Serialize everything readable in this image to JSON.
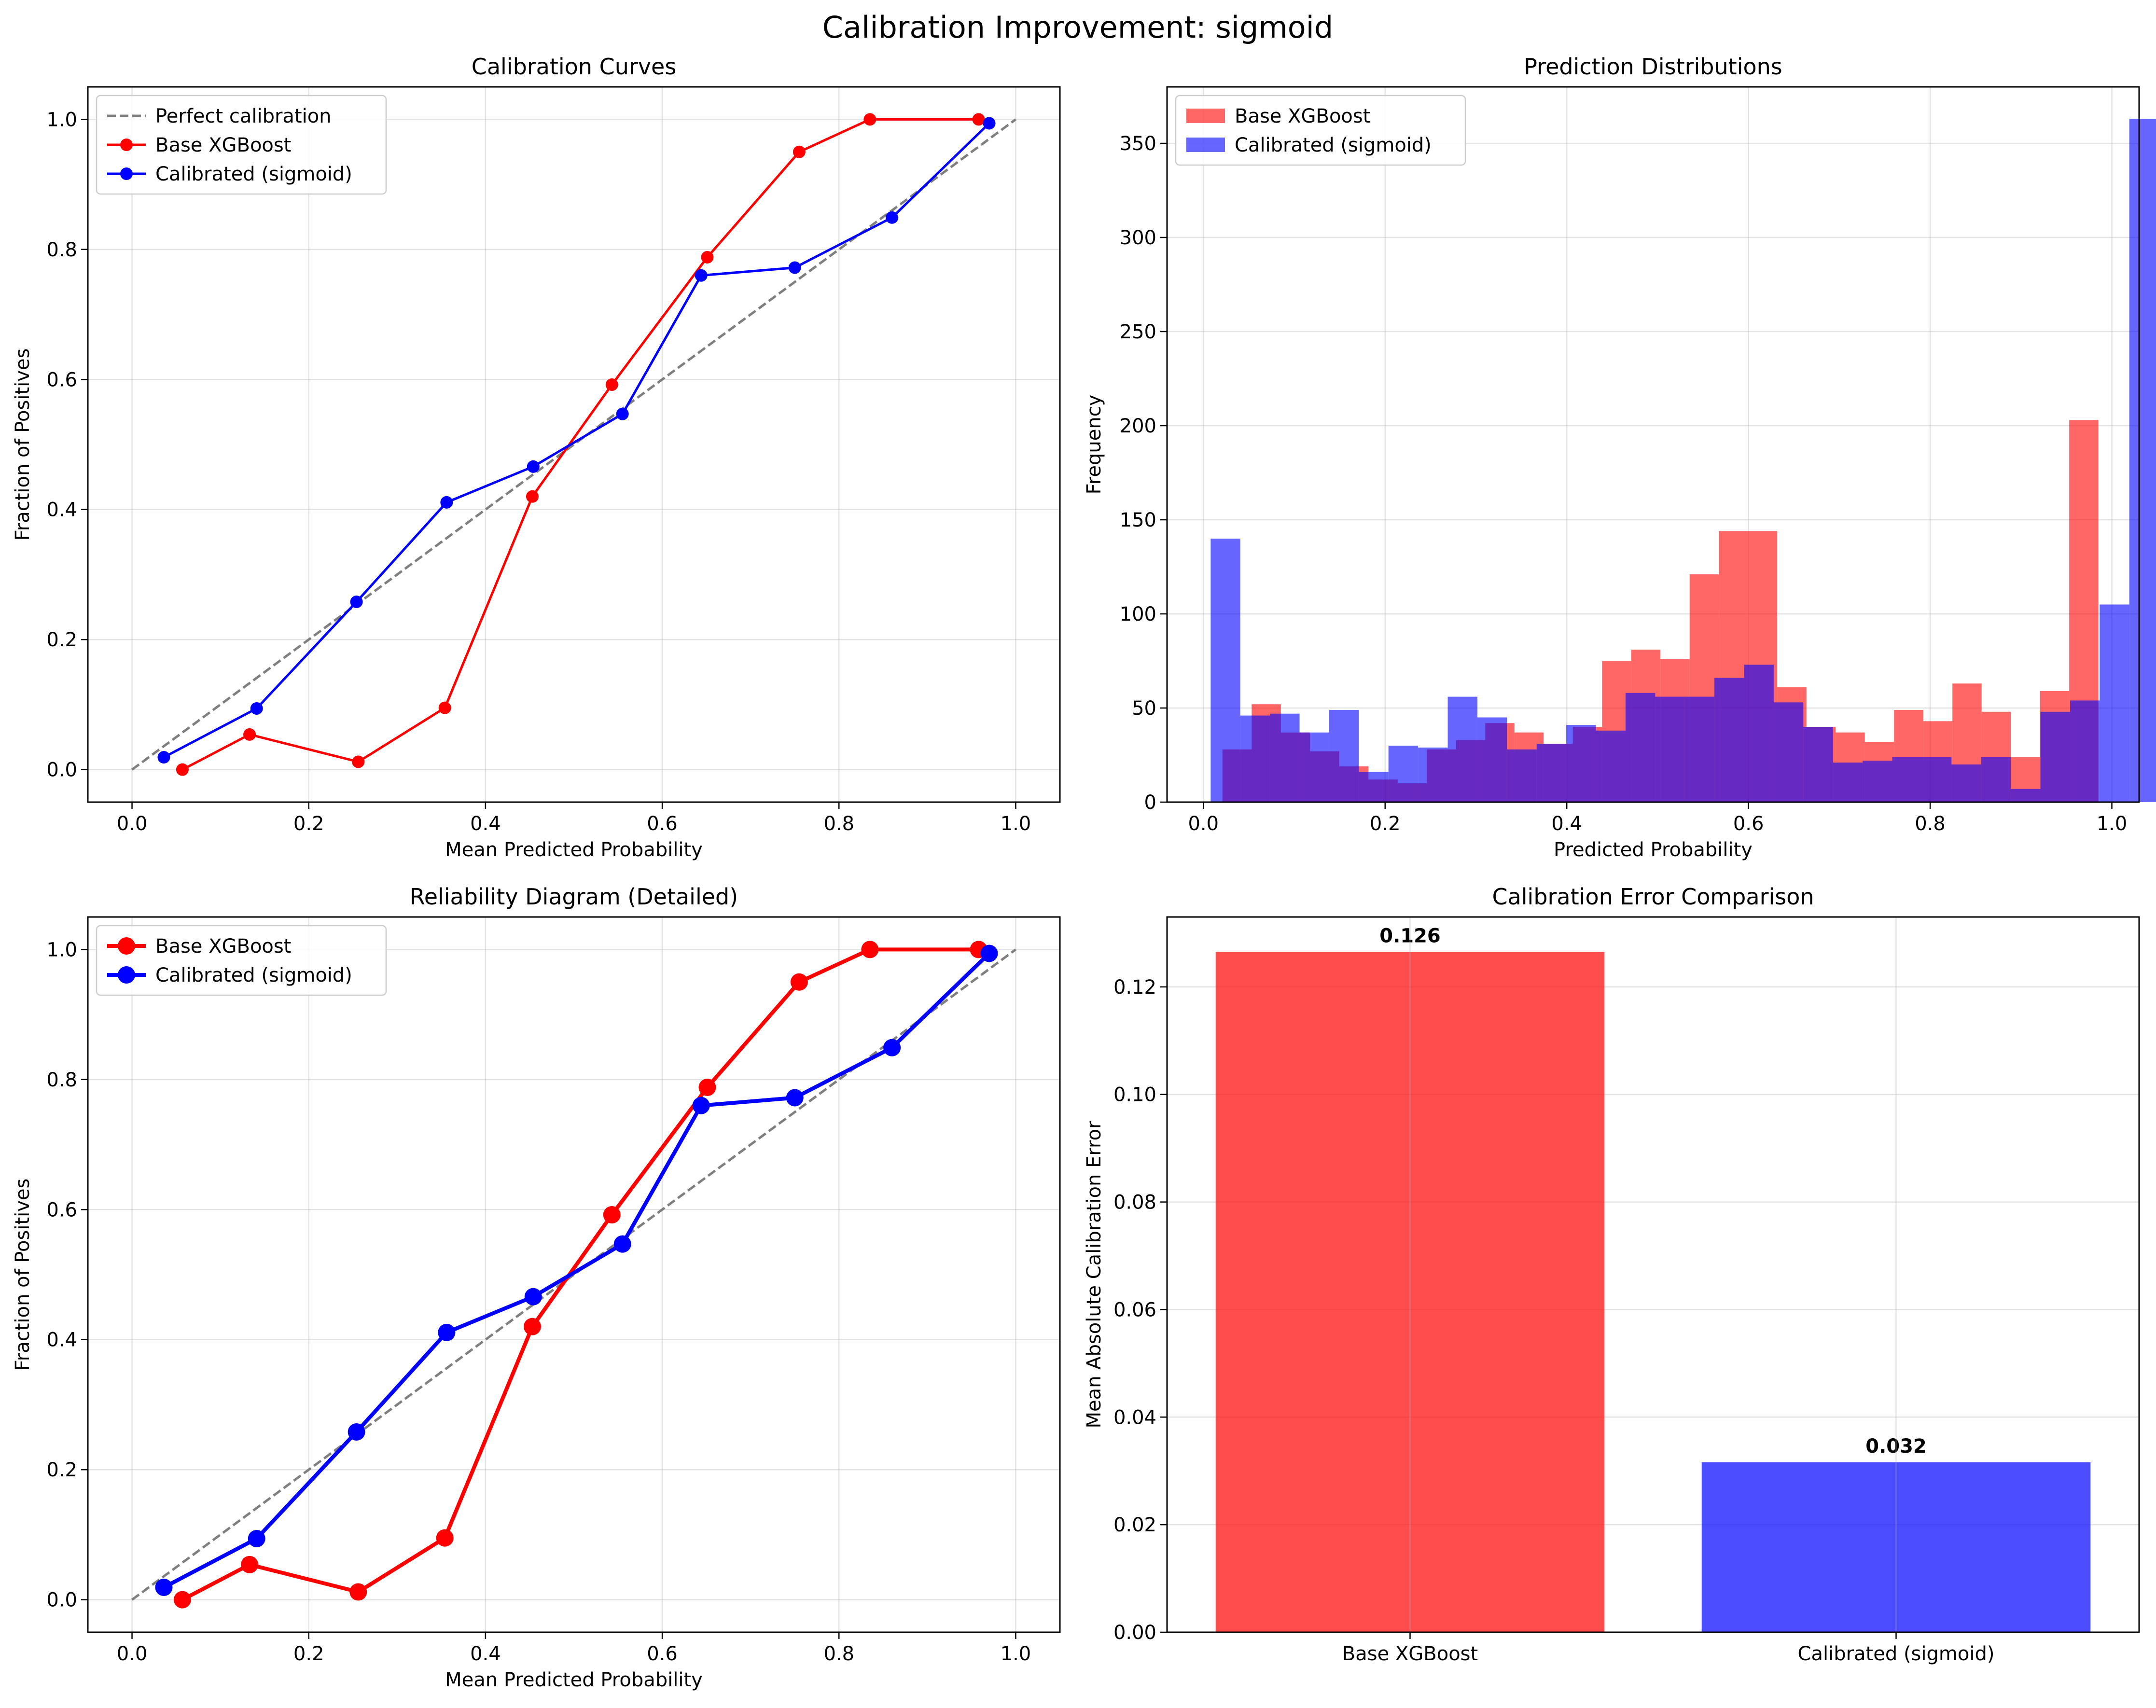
{
  "figure_title": "Calibration Improvement: sigmoid",
  "colors": {
    "base": "#ff0000",
    "calibrated": "#0000ff",
    "perfect": "#7f7f7f",
    "purple_overlap": "#8c30c0"
  },
  "chart_data": [
    {
      "id": "calibration-curves",
      "type": "line",
      "title": "Calibration Curves",
      "xlabel": "Mean Predicted Probability",
      "ylabel": "Fraction of Positives",
      "xlim": [
        -0.05,
        1.05
      ],
      "ylim": [
        -0.05,
        1.05
      ],
      "xticks": [
        0.0,
        0.2,
        0.4,
        0.6,
        0.8,
        1.0
      ],
      "yticks": [
        0.0,
        0.2,
        0.4,
        0.6,
        0.8,
        1.0
      ],
      "grid": true,
      "legend_position": "upper-left",
      "series": [
        {
          "name": "Perfect calibration",
          "style": "dashed",
          "x": [
            0.0,
            1.0
          ],
          "y": [
            0.0,
            1.0
          ]
        },
        {
          "name": "Base XGBoost",
          "style": "marker",
          "x": [
            0.057,
            0.133,
            0.256,
            0.354,
            0.453,
            0.543,
            0.651,
            0.755,
            0.835,
            0.958
          ],
          "y": [
            0.0,
            0.054,
            0.012,
            0.095,
            0.42,
            0.592,
            0.788,
            0.95,
            1.0,
            1.0
          ]
        },
        {
          "name": "Calibrated (sigmoid)",
          "style": "marker",
          "x": [
            0.036,
            0.141,
            0.254,
            0.356,
            0.454,
            0.555,
            0.644,
            0.75,
            0.86,
            0.97
          ],
          "y": [
            0.019,
            0.094,
            0.258,
            0.411,
            0.466,
            0.547,
            0.76,
            0.772,
            0.849,
            0.994
          ]
        }
      ]
    },
    {
      "id": "prediction-distributions",
      "type": "histogram",
      "title": "Prediction Distributions",
      "xlabel": "Predicted Probability",
      "ylabel": "Frequency",
      "xlim": [
        -0.04,
        1.03
      ],
      "ylim": [
        0,
        380
      ],
      "xticks": [
        0.0,
        0.2,
        0.4,
        0.6,
        0.8,
        1.0
      ],
      "yticks": [
        0,
        50,
        100,
        150,
        200,
        250,
        300,
        350
      ],
      "grid": true,
      "legend_position": "upper-left",
      "series": [
        {
          "name": "Base XGBoost",
          "bin_start": 0.021,
          "bin_width": 0.03214,
          "values": [
            28,
            52,
            37,
            27,
            19,
            12,
            10,
            28,
            33,
            42,
            37,
            31,
            40,
            75,
            81,
            76,
            121,
            144,
            144,
            61,
            40,
            37,
            32,
            49,
            43,
            63,
            48,
            24,
            59,
            203
          ]
        },
        {
          "name": "Calibrated (sigmoid)",
          "bin_start": 0.008,
          "bin_width": 0.03262,
          "values": [
            140,
            46,
            47,
            37,
            49,
            16,
            30,
            29,
            56,
            45,
            28,
            31,
            41,
            38,
            58,
            56,
            56,
            66,
            73,
            53,
            40,
            21,
            22,
            24,
            24,
            20,
            24,
            7,
            48,
            54,
            105,
            363
          ]
        }
      ]
    },
    {
      "id": "reliability-diagram",
      "type": "line",
      "title": "Reliability Diagram (Detailed)",
      "xlabel": "Mean Predicted Probability",
      "ylabel": "Fraction of Positives",
      "xlim": [
        -0.05,
        1.05
      ],
      "ylim": [
        -0.05,
        1.05
      ],
      "xticks": [
        0.0,
        0.2,
        0.4,
        0.6,
        0.8,
        1.0
      ],
      "yticks": [
        0.0,
        0.2,
        0.4,
        0.6,
        0.8,
        1.0
      ],
      "grid": true,
      "legend_position": "upper-left",
      "series": [
        {
          "name": "Perfect",
          "style": "dashed",
          "in_legend": false,
          "x": [
            0.0,
            1.0
          ],
          "y": [
            0.0,
            1.0
          ]
        },
        {
          "name": "Base XGBoost",
          "style": "marker-large",
          "x": [
            0.057,
            0.133,
            0.256,
            0.354,
            0.453,
            0.543,
            0.651,
            0.755,
            0.835,
            0.958
          ],
          "y": [
            0.0,
            0.054,
            0.012,
            0.095,
            0.42,
            0.592,
            0.788,
            0.95,
            1.0,
            1.0
          ]
        },
        {
          "name": "Calibrated (sigmoid)",
          "style": "marker-large",
          "x": [
            0.036,
            0.141,
            0.254,
            0.356,
            0.454,
            0.555,
            0.644,
            0.75,
            0.86,
            0.97
          ],
          "y": [
            0.019,
            0.094,
            0.258,
            0.411,
            0.466,
            0.547,
            0.76,
            0.772,
            0.849,
            0.994
          ]
        }
      ]
    },
    {
      "id": "calibration-error-comparison",
      "type": "bar",
      "title": "Calibration Error Comparison",
      "xlabel": "",
      "ylabel": "Mean Absolute Calibration Error",
      "categories": [
        "Base XGBoost",
        "Calibrated (sigmoid)"
      ],
      "values": [
        0.1265,
        0.0316
      ],
      "value_labels": [
        "0.126",
        "0.032"
      ],
      "ylim": [
        0,
        0.133
      ],
      "yticks": [
        0.0,
        0.02,
        0.04,
        0.06,
        0.08,
        0.1,
        0.12
      ],
      "ytick_labels": [
        "0.00",
        "0.02",
        "0.04",
        "0.06",
        "0.08",
        "0.10",
        "0.12"
      ],
      "grid": true
    }
  ]
}
